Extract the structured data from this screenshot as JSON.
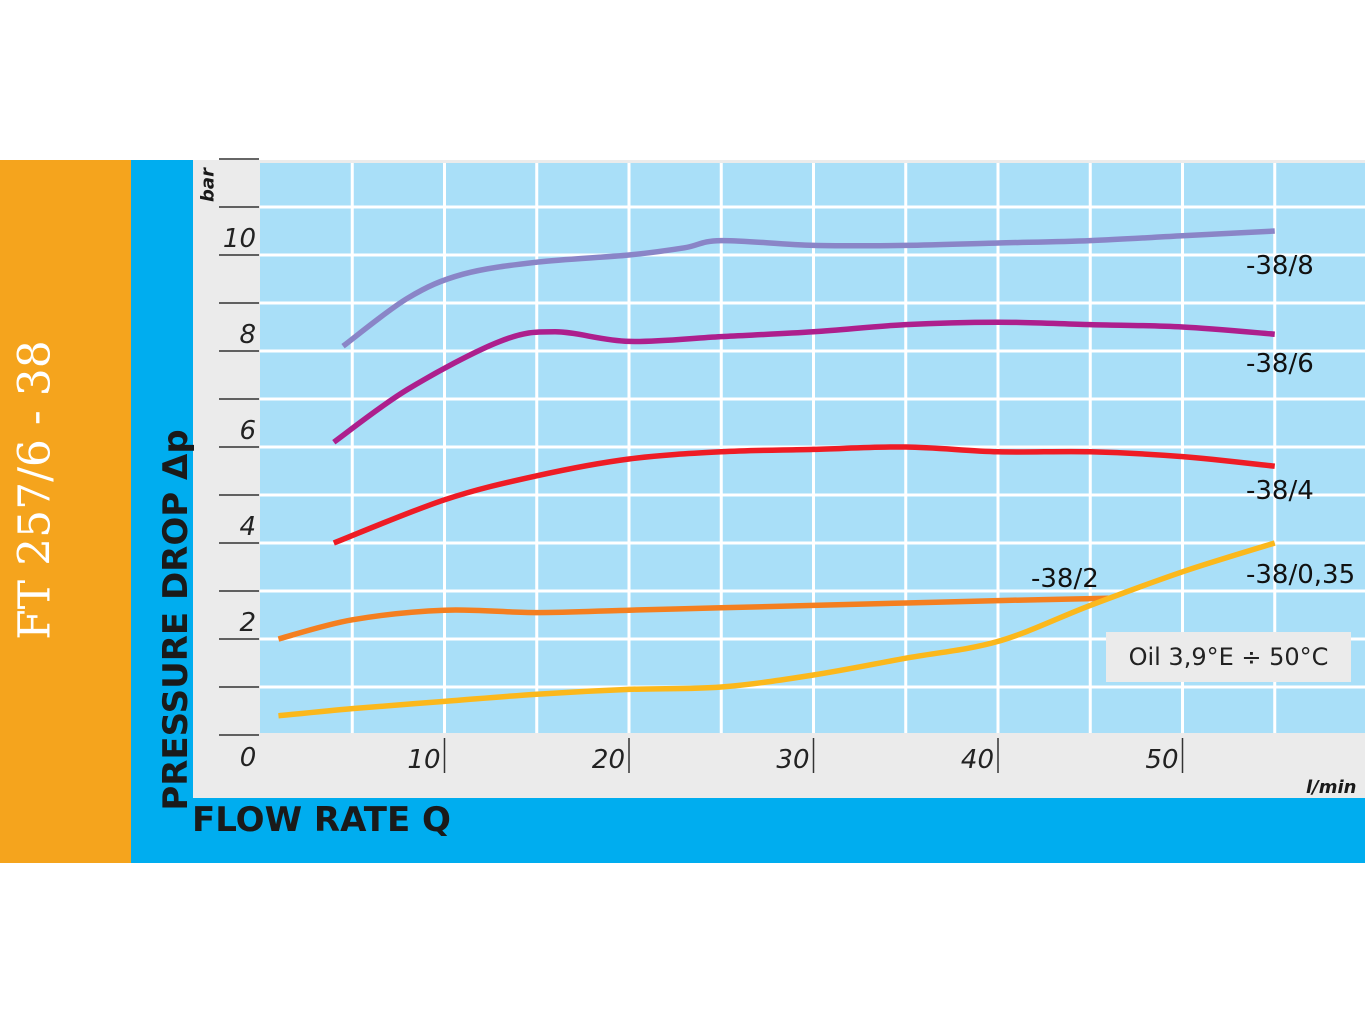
{
  "side_title": "FT 257/6 - 38",
  "note": "Oil 3,9°E ÷ 50°C",
  "chart_data": {
    "type": "line",
    "title": "",
    "xlabel": "FLOW RATE Q",
    "ylabel": "PRESSURE DROP Δp",
    "x_unit": "l/min",
    "y_unit": "bar",
    "xlim": [
      0,
      60
    ],
    "ylim": [
      0,
      12
    ],
    "x_ticks": [
      0,
      10,
      20,
      30,
      40,
      50
    ],
    "y_ticks": [
      2,
      4,
      6,
      8,
      10
    ],
    "grid": true,
    "colors": {
      "plot_background": "#a9dff8",
      "grid": "#ffffff",
      "side_panel": "#f5a41d",
      "frame": "#00adef",
      "panel": "#ebebeb"
    },
    "series": [
      {
        "name": "-38/8",
        "color": "#8a85c7",
        "x": [
          4.5,
          8,
          11,
          15,
          20,
          23,
          25,
          30,
          35,
          40,
          45,
          50,
          55
        ],
        "y": [
          8.1,
          9.1,
          9.6,
          9.85,
          10.0,
          10.15,
          10.3,
          10.2,
          10.2,
          10.25,
          10.3,
          10.4,
          10.5
        ]
      },
      {
        "name": "-38/6",
        "color": "#ad1f8d",
        "x": [
          4,
          8,
          13,
          16,
          20,
          25,
          30,
          35,
          40,
          45,
          50,
          55
        ],
        "y": [
          6.1,
          7.2,
          8.2,
          8.4,
          8.2,
          8.3,
          8.4,
          8.55,
          8.6,
          8.55,
          8.5,
          8.35
        ]
      },
      {
        "name": "-38/4",
        "color": "#ee1c25",
        "x": [
          4,
          10,
          15,
          20,
          25,
          30,
          35,
          40,
          45,
          50,
          55
        ],
        "y": [
          4.0,
          4.9,
          5.4,
          5.75,
          5.9,
          5.95,
          6.0,
          5.9,
          5.9,
          5.8,
          5.6
        ]
      },
      {
        "name": "-38/2",
        "color": "#f47f20",
        "x": [
          1,
          5,
          10,
          15,
          20,
          25,
          30,
          35,
          40,
          46
        ],
        "y": [
          2.0,
          2.4,
          2.6,
          2.55,
          2.6,
          2.65,
          2.7,
          2.75,
          2.8,
          2.85
        ]
      },
      {
        "name": "-38/0,35",
        "color": "#fbb81c",
        "x": [
          1,
          5,
          10,
          15,
          20,
          25,
          30,
          35,
          40,
          45,
          50,
          55
        ],
        "y": [
          0.4,
          0.55,
          0.7,
          0.85,
          0.95,
          1.0,
          1.25,
          1.6,
          1.95,
          2.7,
          3.4,
          4.0
        ]
      }
    ]
  }
}
